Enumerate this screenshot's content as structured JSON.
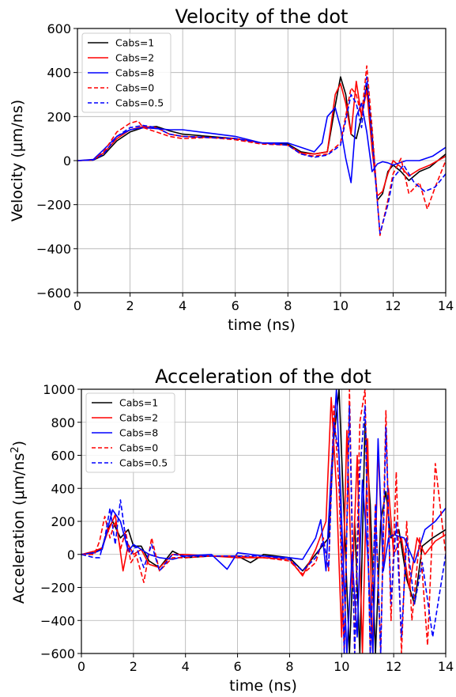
{
  "chart_data": [
    {
      "type": "line",
      "title": "Velocity of the dot",
      "xlabel": "time (ns)",
      "ylabel": "Velocity (μm/ns)",
      "xlim": [
        0,
        14
      ],
      "ylim": [
        -600,
        600
      ],
      "xticks": [
        0,
        2,
        4,
        6,
        8,
        10,
        12,
        14
      ],
      "yticks": [
        -600,
        -400,
        -200,
        0,
        200,
        400,
        600
      ],
      "xtick_labels": [
        "0",
        "2",
        "4",
        "6",
        "8",
        "10",
        "12",
        "14"
      ],
      "ytick_labels": [
        "−600",
        "−400",
        "−200",
        "0",
        "200",
        "400",
        "600"
      ],
      "grid": true,
      "legend_position": "top-left",
      "series": [
        {
          "name": "Cabs=1",
          "color": "#000000",
          "style": "solid",
          "x": [
            0,
            0.6,
            1.0,
            1.5,
            2.0,
            2.5,
            3.0,
            3.5,
            4.0,
            5.0,
            6.0,
            7.0,
            8.0,
            8.5,
            9.0,
            9.5,
            9.8,
            10.0,
            10.2,
            10.4,
            10.6,
            10.8,
            11.0,
            11.2,
            11.4,
            11.6,
            11.8,
            12.0,
            12.3,
            12.6,
            13.0,
            13.4,
            14.0
          ],
          "y": [
            0,
            2,
            25,
            90,
            130,
            150,
            155,
            135,
            120,
            110,
            100,
            80,
            75,
            40,
            30,
            40,
            250,
            380,
            300,
            120,
            100,
            200,
            340,
            120,
            -180,
            -150,
            -50,
            -20,
            -50,
            -90,
            -50,
            -30,
            30
          ]
        },
        {
          "name": "Cabs=2",
          "color": "#ff0000",
          "style": "solid",
          "x": [
            0,
            0.6,
            1.0,
            1.5,
            2.0,
            2.5,
            3.0,
            3.5,
            4.0,
            5.0,
            6.0,
            7.0,
            8.0,
            8.5,
            9.0,
            9.5,
            9.8,
            10.0,
            10.2,
            10.4,
            10.6,
            10.8,
            11.0,
            11.2,
            11.4,
            11.6,
            11.8,
            12.0,
            12.3,
            12.6,
            13.0,
            13.4,
            14.0
          ],
          "y": [
            0,
            3,
            35,
            100,
            140,
            155,
            150,
            120,
            110,
            105,
            100,
            80,
            70,
            35,
            30,
            40,
            300,
            350,
            260,
            120,
            360,
            200,
            320,
            50,
            -160,
            -140,
            -60,
            0,
            -30,
            -70,
            -40,
            -20,
            20
          ]
        },
        {
          "name": "Cabs=8",
          "color": "#0000ff",
          "style": "solid",
          "x": [
            0,
            0.6,
            1.0,
            1.5,
            2.0,
            2.5,
            3.0,
            3.5,
            4.0,
            5.0,
            6.0,
            7.0,
            8.0,
            8.5,
            9.0,
            9.3,
            9.5,
            9.8,
            10.0,
            10.2,
            10.4,
            10.6,
            10.8,
            11.0,
            11.2,
            11.4,
            11.6,
            11.8,
            12.0,
            12.5,
            13.0,
            13.5,
            14.0
          ],
          "y": [
            0,
            5,
            50,
            110,
            140,
            150,
            145,
            140,
            140,
            125,
            110,
            80,
            80,
            60,
            40,
            80,
            200,
            240,
            150,
            10,
            -100,
            200,
            260,
            130,
            -50,
            -15,
            -5,
            -10,
            -20,
            0,
            0,
            20,
            60
          ]
        },
        {
          "name": "Cabs=0",
          "color": "#ff0000",
          "style": "dashed",
          "x": [
            0,
            0.6,
            1.0,
            1.5,
            2.0,
            2.3,
            2.5,
            3.0,
            3.5,
            4.0,
            5.0,
            6.0,
            7.0,
            8.0,
            8.5,
            9.0,
            9.5,
            10.0,
            10.4,
            10.6,
            10.8,
            11.0,
            11.2,
            11.5,
            11.8,
            12.0,
            12.3,
            12.6,
            13.0,
            13.3,
            13.6,
            14.0
          ],
          "y": [
            0,
            3,
            40,
            130,
            170,
            180,
            150,
            130,
            110,
            100,
            105,
            95,
            75,
            70,
            30,
            20,
            30,
            80,
            330,
            300,
            200,
            430,
            150,
            -340,
            -180,
            -60,
            10,
            -150,
            -100,
            -220,
            -120,
            0
          ]
        },
        {
          "name": "Cabs=0.5",
          "color": "#0000ff",
          "style": "dashed",
          "x": [
            0,
            0.6,
            1.0,
            1.5,
            2.0,
            2.5,
            3.0,
            3.5,
            4.0,
            5.0,
            6.0,
            7.0,
            8.0,
            8.5,
            9.0,
            9.5,
            10.0,
            10.4,
            10.6,
            10.8,
            11.0,
            11.2,
            11.5,
            11.8,
            12.0,
            12.4,
            12.8,
            13.2,
            13.6,
            14.0
          ],
          "y": [
            0,
            3,
            30,
            110,
            150,
            160,
            150,
            120,
            110,
            105,
            100,
            80,
            70,
            30,
            15,
            25,
            70,
            300,
            260,
            150,
            380,
            100,
            -330,
            -200,
            -80,
            -20,
            -100,
            -140,
            -120,
            -60
          ]
        }
      ]
    },
    {
      "type": "line",
      "title": "Acceleration of the dot",
      "xlabel": "time (ns)",
      "ylabel_main": "Acceleration (μm/ns",
      "ylabel_sup": "2",
      "ylabel_end": ")",
      "xlim": [
        0,
        14
      ],
      "ylim": [
        -600,
        1000
      ],
      "xticks": [
        0,
        2,
        4,
        6,
        8,
        10,
        12,
        14
      ],
      "yticks": [
        -600,
        -400,
        -200,
        0,
        200,
        400,
        600,
        800,
        1000
      ],
      "xtick_labels": [
        "0",
        "2",
        "4",
        "6",
        "8",
        "10",
        "12",
        "14"
      ],
      "ytick_labels": [
        "−600",
        "−400",
        "−200",
        "0",
        "200",
        "400",
        "600",
        "800",
        "1000"
      ],
      "grid": true,
      "legend_position": "top-left",
      "series": [
        {
          "name": "Cabs=1",
          "color": "#000000",
          "style": "solid",
          "x": [
            0,
            0.5,
            0.8,
            1.0,
            1.2,
            1.5,
            1.8,
            2.0,
            2.3,
            2.6,
            3.0,
            3.5,
            4.0,
            5.0,
            6.0,
            6.5,
            7.0,
            8.0,
            8.5,
            9.0,
            9.5,
            9.7,
            9.9,
            10.1,
            10.3,
            10.5,
            10.7,
            10.9,
            11.1,
            11.3,
            11.5,
            11.7,
            11.9,
            12.2,
            12.5,
            12.8,
            13.1,
            13.5,
            14.0
          ],
          "y": [
            0,
            10,
            40,
            150,
            200,
            100,
            150,
            50,
            50,
            -40,
            -80,
            20,
            -20,
            -10,
            -10,
            -50,
            0,
            -20,
            -100,
            0,
            100,
            700,
            1000,
            200,
            -600,
            200,
            -600,
            800,
            300,
            -600,
            200,
            380,
            100,
            150,
            -150,
            -300,
            50,
            100,
            150
          ]
        },
        {
          "name": "Cabs=2",
          "color": "#ff0000",
          "style": "solid",
          "x": [
            0,
            0.5,
            0.8,
            1.0,
            1.3,
            1.6,
            1.8,
            2.0,
            2.3,
            2.6,
            3.0,
            3.5,
            4.0,
            5.0,
            6.0,
            7.0,
            8.0,
            8.5,
            9.0,
            9.4,
            9.6,
            9.8,
            10.0,
            10.2,
            10.4,
            10.6,
            10.8,
            11.0,
            11.2,
            11.4,
            11.6,
            11.8,
            12.0,
            12.3,
            12.6,
            12.9,
            13.2,
            13.6,
            14.0
          ],
          "y": [
            0,
            20,
            40,
            130,
            240,
            -100,
            60,
            0,
            30,
            -60,
            -80,
            0,
            0,
            -10,
            -20,
            -20,
            -30,
            -130,
            30,
            200,
            950,
            400,
            -500,
            750,
            -200,
            600,
            -600,
            700,
            -600,
            650,
            -100,
            400,
            0,
            100,
            -200,
            100,
            0,
            80,
            120
          ]
        },
        {
          "name": "Cabs=8",
          "color": "#0000ff",
          "style": "solid",
          "x": [
            0,
            0.5,
            0.8,
            1.0,
            1.2,
            1.5,
            1.8,
            2.0,
            2.3,
            2.6,
            3.0,
            3.5,
            4.0,
            5.0,
            5.6,
            6.0,
            7.0,
            8.0,
            8.5,
            9.0,
            9.2,
            9.4,
            9.6,
            9.8,
            10.0,
            10.2,
            10.4,
            10.6,
            10.8,
            11.0,
            11.2,
            11.4,
            11.6,
            11.8,
            12.0,
            12.4,
            12.8,
            13.2,
            13.6,
            14.0
          ],
          "y": [
            0,
            10,
            30,
            150,
            270,
            200,
            20,
            60,
            30,
            0,
            -20,
            -30,
            -10,
            0,
            -90,
            10,
            -10,
            -20,
            -30,
            100,
            210,
            -100,
            500,
            1000,
            200,
            -600,
            0,
            -500,
            450,
            0,
            -600,
            700,
            -100,
            100,
            120,
            100,
            -50,
            150,
            200,
            280
          ]
        },
        {
          "name": "Cabs=0",
          "color": "#ff0000",
          "style": "dashed",
          "x": [
            0,
            0.5,
            0.7,
            0.9,
            1.1,
            1.3,
            1.5,
            1.7,
            1.9,
            2.1,
            2.4,
            2.7,
            3.0,
            3.5,
            4.0,
            5.0,
            6.0,
            7.0,
            8.0,
            8.5,
            9.0,
            9.3,
            9.5,
            9.7,
            9.9,
            10.1,
            10.3,
            10.5,
            10.7,
            10.9,
            11.1,
            11.3,
            11.5,
            11.7,
            11.9,
            12.1,
            12.3,
            12.5,
            12.7,
            13.0,
            13.3,
            13.6,
            14.0
          ],
          "y": [
            0,
            0,
            80,
            230,
            100,
            200,
            30,
            140,
            -50,
            0,
            -170,
            100,
            -100,
            -20,
            -20,
            -10,
            -10,
            -20,
            -40,
            -120,
            -50,
            100,
            -100,
            900,
            400,
            -600,
            1000,
            -600,
            800,
            1000,
            -600,
            300,
            -600,
            870,
            -400,
            500,
            -600,
            200,
            -400,
            100,
            -550,
            550,
            0
          ]
        },
        {
          "name": "Cabs=0.5",
          "color": "#0000ff",
          "style": "dashed",
          "x": [
            0,
            0.5,
            0.7,
            0.9,
            1.1,
            1.3,
            1.5,
            1.7,
            1.9,
            2.1,
            2.4,
            2.7,
            3.0,
            3.5,
            4.0,
            5.0,
            6.0,
            7.0,
            8.0,
            8.5,
            9.0,
            9.3,
            9.5,
            9.7,
            9.9,
            10.1,
            10.3,
            10.5,
            10.7,
            10.9,
            11.1,
            11.3,
            11.5,
            11.7,
            11.9,
            12.1,
            12.3,
            12.5,
            12.8,
            13.1,
            13.5,
            14.0
          ],
          "y": [
            0,
            -20,
            -20,
            100,
            280,
            60,
            330,
            100,
            0,
            50,
            -80,
            60,
            -100,
            0,
            -10,
            -10,
            -10,
            -10,
            -30,
            -100,
            -20,
            80,
            -80,
            800,
            600,
            -600,
            900,
            -600,
            500,
            900,
            -600,
            300,
            -600,
            770,
            -300,
            200,
            -500,
            100,
            -300,
            -50,
            -500,
            0
          ]
        }
      ]
    }
  ]
}
